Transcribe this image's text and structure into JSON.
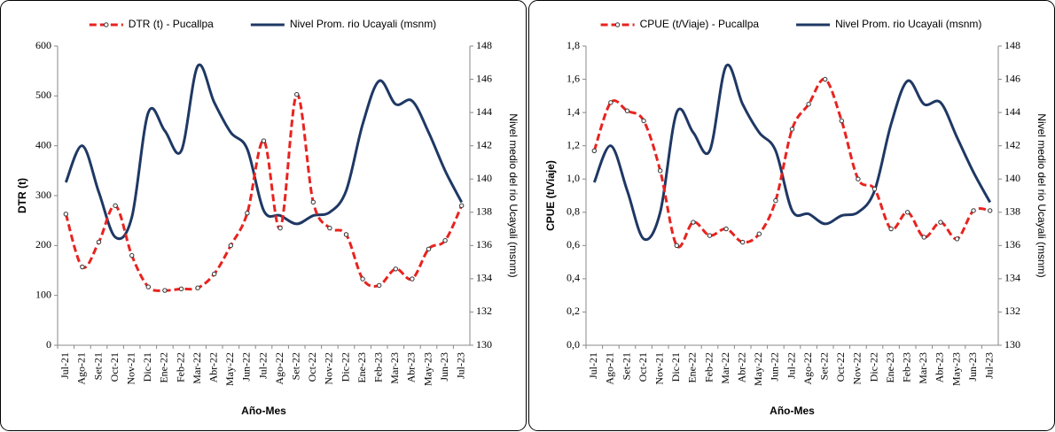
{
  "chart_data": [
    {
      "type": "line",
      "x_label": "Año-Mes",
      "y_label": "DTR (t)",
      "y2_label": "Nivel medio del rio Ucayali (msnm)",
      "legend": "top",
      "categories": [
        "Jul-21",
        "Ago-21",
        "Set-21",
        "Oct-21",
        "Nov-21",
        "Dic-21",
        "Ene-22",
        "Feb-22",
        "Mar-22",
        "Abr-22",
        "May-22",
        "Jun-22",
        "Jul-22",
        "Ago-22",
        "Set-22",
        "Oct-22",
        "Nov-22",
        "Dic-22",
        "Ene-23",
        "Feb-23",
        "Mar-23",
        "Abr-23",
        "May-23",
        "Jun-23",
        "Jul-23"
      ],
      "series": [
        {
          "name": "DTR (t) - Pucallpa",
          "color": "#e8231f",
          "style": "dashed",
          "marker": true,
          "values": [
            263,
            157,
            207,
            280,
            180,
            117,
            110,
            113,
            115,
            143,
            200,
            265,
            410,
            235,
            503,
            287,
            235,
            222,
            133,
            120,
            153,
            133,
            193,
            210,
            280
          ]
        },
        {
          "name": "Nivel Prom. rio Ucayali  (msnm)",
          "color": "#1f3864",
          "style": "solid",
          "marker": false,
          "axis": "y2",
          "values": [
            139.8,
            142.0,
            139.2,
            136.5,
            137.7,
            144.0,
            142.9,
            141.7,
            146.8,
            144.6,
            142.8,
            141.8,
            138.1,
            137.8,
            137.3,
            137.8,
            138.0,
            139.3,
            143.3,
            145.9,
            144.5,
            144.7,
            142.8,
            140.5,
            138.6
          ]
        }
      ],
      "ylim": [
        0,
        600
      ],
      "yticks": [
        0,
        100,
        200,
        300,
        400,
        500,
        600
      ],
      "y2lim": [
        130,
        148
      ],
      "y2ticks": [
        130,
        132,
        134,
        136,
        138,
        140,
        142,
        144,
        146,
        148
      ]
    },
    {
      "type": "line",
      "x_label": "Año-Mes",
      "y_label": "CPUE  (t/Viaje)",
      "y2_label": "Nivel medio del rio Ucayali (msnm)",
      "legend": "top",
      "categories": [
        "Jul-21",
        "Ago-21",
        "Set-21",
        "Oct-21",
        "Nov-21",
        "Dic-21",
        "Ene-22",
        "Feb-22",
        "Mar-22",
        "Abr-22",
        "May-22",
        "Jun-22",
        "Jul-22",
        "Ago-22",
        "Set-22",
        "Oct-22",
        "Nov-22",
        "Dic-22",
        "Ene-23",
        "Feb-23",
        "Mar-23",
        "Abr-23",
        "May-23",
        "Jun-23",
        "Jul-23"
      ],
      "series": [
        {
          "name": "CPUE  (t/Viaje) - Pucallpa",
          "color": "#e8231f",
          "style": "dashed",
          "marker": true,
          "values": [
            1.17,
            1.46,
            1.41,
            1.35,
            1.05,
            0.6,
            0.74,
            0.66,
            0.7,
            0.62,
            0.67,
            0.87,
            1.3,
            1.45,
            1.6,
            1.35,
            1.0,
            0.94,
            0.7,
            0.8,
            0.65,
            0.74,
            0.64,
            0.81,
            0.81
          ]
        },
        {
          "name": "Nivel Prom. rio Ucayali  (msnm)",
          "color": "#1f3864",
          "style": "solid",
          "marker": false,
          "axis": "y2",
          "values": [
            139.8,
            142.0,
            139.3,
            136.4,
            138.0,
            144.0,
            142.8,
            141.7,
            146.8,
            144.5,
            142.8,
            141.7,
            138.1,
            137.9,
            137.3,
            137.8,
            138.0,
            139.3,
            143.3,
            145.9,
            144.5,
            144.6,
            142.5,
            140.4,
            138.6
          ]
        }
      ],
      "ylim": [
        0,
        1.8
      ],
      "yticks": [
        {
          "value": 0,
          "label": "0,0"
        },
        {
          "value": 0.2,
          "label": "0,2"
        },
        {
          "value": 0.4,
          "label": "0,4"
        },
        {
          "value": 0.6,
          "label": "0,6"
        },
        {
          "value": 0.8,
          "label": "0,8"
        },
        {
          "value": 1.0,
          "label": "1,0"
        },
        {
          "value": 1.2,
          "label": "1,2"
        },
        {
          "value": 1.4,
          "label": "1,4"
        },
        {
          "value": 1.6,
          "label": "1,6"
        },
        {
          "value": 1.8,
          "label": "1,8"
        }
      ],
      "y2lim": [
        130,
        148
      ],
      "y2ticks": [
        130,
        132,
        134,
        136,
        138,
        140,
        142,
        144,
        146,
        148
      ]
    }
  ]
}
